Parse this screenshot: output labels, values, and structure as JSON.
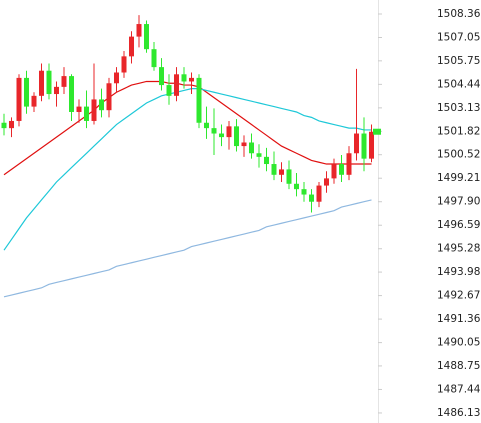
{
  "chart_data": {
    "type": "candlestick",
    "ylim": [
      1485.57,
      1509.14
    ],
    "yticks": [
      1508.36,
      1507.05,
      1505.75,
      1504.44,
      1503.13,
      1501.82,
      1500.52,
      1499.21,
      {
        "value": 1497.9,
        "label": "1497.90"
      },
      1496.59,
      1495.28,
      1493.98,
      1492.67,
      1491.36,
      1490.05,
      1488.75,
      1487.44,
      1486.13
    ],
    "up_color": "#e8262a",
    "down_color": "#2ee82e",
    "open": [
      1502.3,
      1502.0,
      1502.4,
      1504.8,
      1503.2,
      1503.8,
      1505.2,
      1503.9,
      1504.3,
      1504.9,
      1502.9,
      1503.2,
      1502.4,
      1503.6,
      1503.0,
      1504.5,
      1505.1,
      1506.0,
      1507.1,
      1507.8,
      1506.4,
      1505.4,
      1504.4,
      1503.8,
      1505.0,
      1504.6,
      1504.8,
      1502.3,
      1502.0,
      1501.7,
      1501.5,
      1502.1,
      1501.0,
      1501.2,
      1500.6,
      1500.4,
      1500.0,
      1499.4,
      1499.7,
      1498.9,
      1498.6,
      1498.3,
      1497.9,
      1498.8,
      1499.2,
      1500.0,
      1499.4,
      1500.6,
      1501.7,
      1500.3
    ],
    "high": [
      1502.8,
      1502.6,
      1505.0,
      1505.2,
      1504.0,
      1505.6,
      1505.6,
      1504.6,
      1505.4,
      1505.0,
      1503.6,
      1504.1,
      1505.6,
      1504.2,
      1504.8,
      1505.4,
      1506.3,
      1507.4,
      1508.3,
      1508.0,
      1506.8,
      1505.9,
      1505.0,
      1505.4,
      1505.4,
      1505.1,
      1505.0,
      1503.2,
      1503.1,
      1502.2,
      1502.4,
      1502.5,
      1501.6,
      1501.7,
      1501.1,
      1500.9,
      1500.7,
      1500.1,
      1500.2,
      1499.5,
      1499.0,
      1498.6,
      1499.0,
      1499.6,
      1500.3,
      1500.5,
      1501.0,
      1505.3,
      1502.6,
      1502.2
    ],
    "low": [
      1501.6,
      1501.5,
      1502.1,
      1502.8,
      1502.9,
      1503.5,
      1503.6,
      1503.2,
      1503.9,
      1502.4,
      1502.3,
      1502.0,
      1502.2,
      1502.6,
      1502.6,
      1504.0,
      1504.8,
      1505.6,
      1506.5,
      1506.2,
      1505.2,
      1504.1,
      1503.3,
      1503.5,
      1504.2,
      1503.9,
      1502.0,
      1501.4,
      1500.5,
      1501.0,
      1500.8,
      1500.7,
      1500.4,
      1500.3,
      1499.8,
      1499.6,
      1499.1,
      1499.0,
      1498.6,
      1498.2,
      1497.9,
      1497.3,
      1497.6,
      1498.4,
      1498.9,
      1499.0,
      1499.1,
      1500.2,
      1499.6,
      1500.1
    ],
    "close": [
      1502.0,
      1502.4,
      1504.8,
      1503.2,
      1503.8,
      1505.2,
      1503.9,
      1504.3,
      1504.9,
      1502.9,
      1503.2,
      1502.4,
      1503.6,
      1503.0,
      1504.5,
      1505.1,
      1506.0,
      1507.1,
      1507.8,
      1506.4,
      1505.4,
      1504.4,
      1503.8,
      1505.0,
      1504.6,
      1504.8,
      1502.3,
      1502.0,
      1501.7,
      1501.5,
      1502.1,
      1501.0,
      1501.2,
      1500.6,
      1500.4,
      1500.0,
      1499.4,
      1499.7,
      1498.9,
      1498.6,
      1498.3,
      1497.9,
      1498.8,
      1499.2,
      1500.0,
      1499.4,
      1500.6,
      1501.7,
      1500.3,
      1501.8
    ],
    "series": [
      {
        "color": "#e01010",
        "values": [
          1499.4,
          1499.7,
          1500.0,
          1500.3,
          1500.6,
          1500.9,
          1501.2,
          1501.5,
          1501.8,
          1502.1,
          1502.4,
          1502.7,
          1503.0,
          1503.4,
          1503.7,
          1504.0,
          1504.2,
          1504.4,
          1504.5,
          1504.6,
          1504.6,
          1504.6,
          1504.5,
          1504.5,
          1504.4,
          1504.4,
          1504.3,
          1504.0,
          1503.7,
          1503.4,
          1503.1,
          1502.8,
          1502.5,
          1502.2,
          1501.9,
          1501.6,
          1501.3,
          1501.0,
          1500.8,
          1500.6,
          1500.4,
          1500.2,
          1500.1,
          1500.0,
          1500.0,
          1500.0,
          1500.0,
          1500.0,
          1500.0,
          1500.0
        ]
      },
      {
        "color": "#1ec8d8",
        "values": [
          1495.2,
          1495.8,
          1496.4,
          1497.0,
          1497.5,
          1498.0,
          1498.5,
          1499.0,
          1499.4,
          1499.8,
          1500.2,
          1500.6,
          1501.0,
          1501.4,
          1501.8,
          1502.2,
          1502.5,
          1502.8,
          1503.1,
          1503.4,
          1503.6,
          1503.8,
          1503.9,
          1504.0,
          1504.1,
          1504.2,
          1504.2,
          1504.1,
          1504.0,
          1503.9,
          1503.8,
          1503.7,
          1503.6,
          1503.5,
          1503.4,
          1503.3,
          1503.2,
          1503.1,
          1503.0,
          1502.9,
          1502.7,
          1502.6,
          1502.4,
          1502.3,
          1502.2,
          1502.1,
          1502.0,
          1502.0,
          1501.9,
          1501.9
        ]
      },
      {
        "color": "#8fb8e0",
        "values": [
          1492.6,
          1492.7,
          1492.8,
          1492.9,
          1493.0,
          1493.1,
          1493.3,
          1493.4,
          1493.5,
          1493.6,
          1493.7,
          1493.8,
          1493.9,
          1494.0,
          1494.1,
          1494.3,
          1494.4,
          1494.5,
          1494.6,
          1494.7,
          1494.8,
          1494.9,
          1495.0,
          1495.1,
          1495.2,
          1495.4,
          1495.5,
          1495.6,
          1495.7,
          1495.8,
          1495.9,
          1496.0,
          1496.1,
          1496.2,
          1496.3,
          1496.5,
          1496.6,
          1496.7,
          1496.8,
          1496.9,
          1497.0,
          1497.1,
          1497.2,
          1497.3,
          1497.4,
          1497.6,
          1497.7,
          1497.8,
          1497.9,
          1498.0
        ]
      }
    ]
  }
}
